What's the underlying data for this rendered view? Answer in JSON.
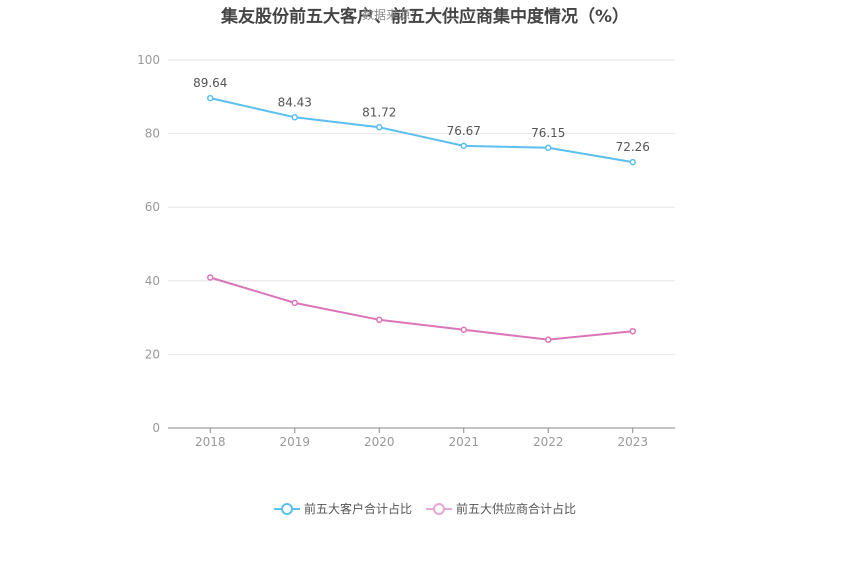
{
  "header": {
    "title": "集友股份前五大客户、前五大供应商集中度情况（%）",
    "watermark": "数据来源："
  },
  "chart_data": {
    "type": "line",
    "title": "集友股份前五大客户、前五大供应商集中度情况（%）",
    "x": [
      "2018",
      "2019",
      "2020",
      "2021",
      "2022",
      "2023"
    ],
    "ylim": [
      0,
      100
    ],
    "yticks": [
      0,
      20,
      40,
      60,
      80,
      100
    ],
    "grid": true,
    "legend_position": "bottom",
    "series": [
      {
        "name": "前五大客户合计占比",
        "color": "#5bbfef",
        "values": [
          89.64,
          84.43,
          81.72,
          76.67,
          76.15,
          72.26
        ],
        "labels": [
          "89.64",
          "84.43",
          "81.72",
          "76.67",
          "76.15",
          "72.26"
        ],
        "show_labels": true
      },
      {
        "name": "前五大供应商合计占比",
        "color": "#db75b8",
        "values": [
          40.9,
          34.0,
          29.4,
          26.7,
          24.0,
          26.3
        ],
        "show_labels": false
      }
    ]
  }
}
